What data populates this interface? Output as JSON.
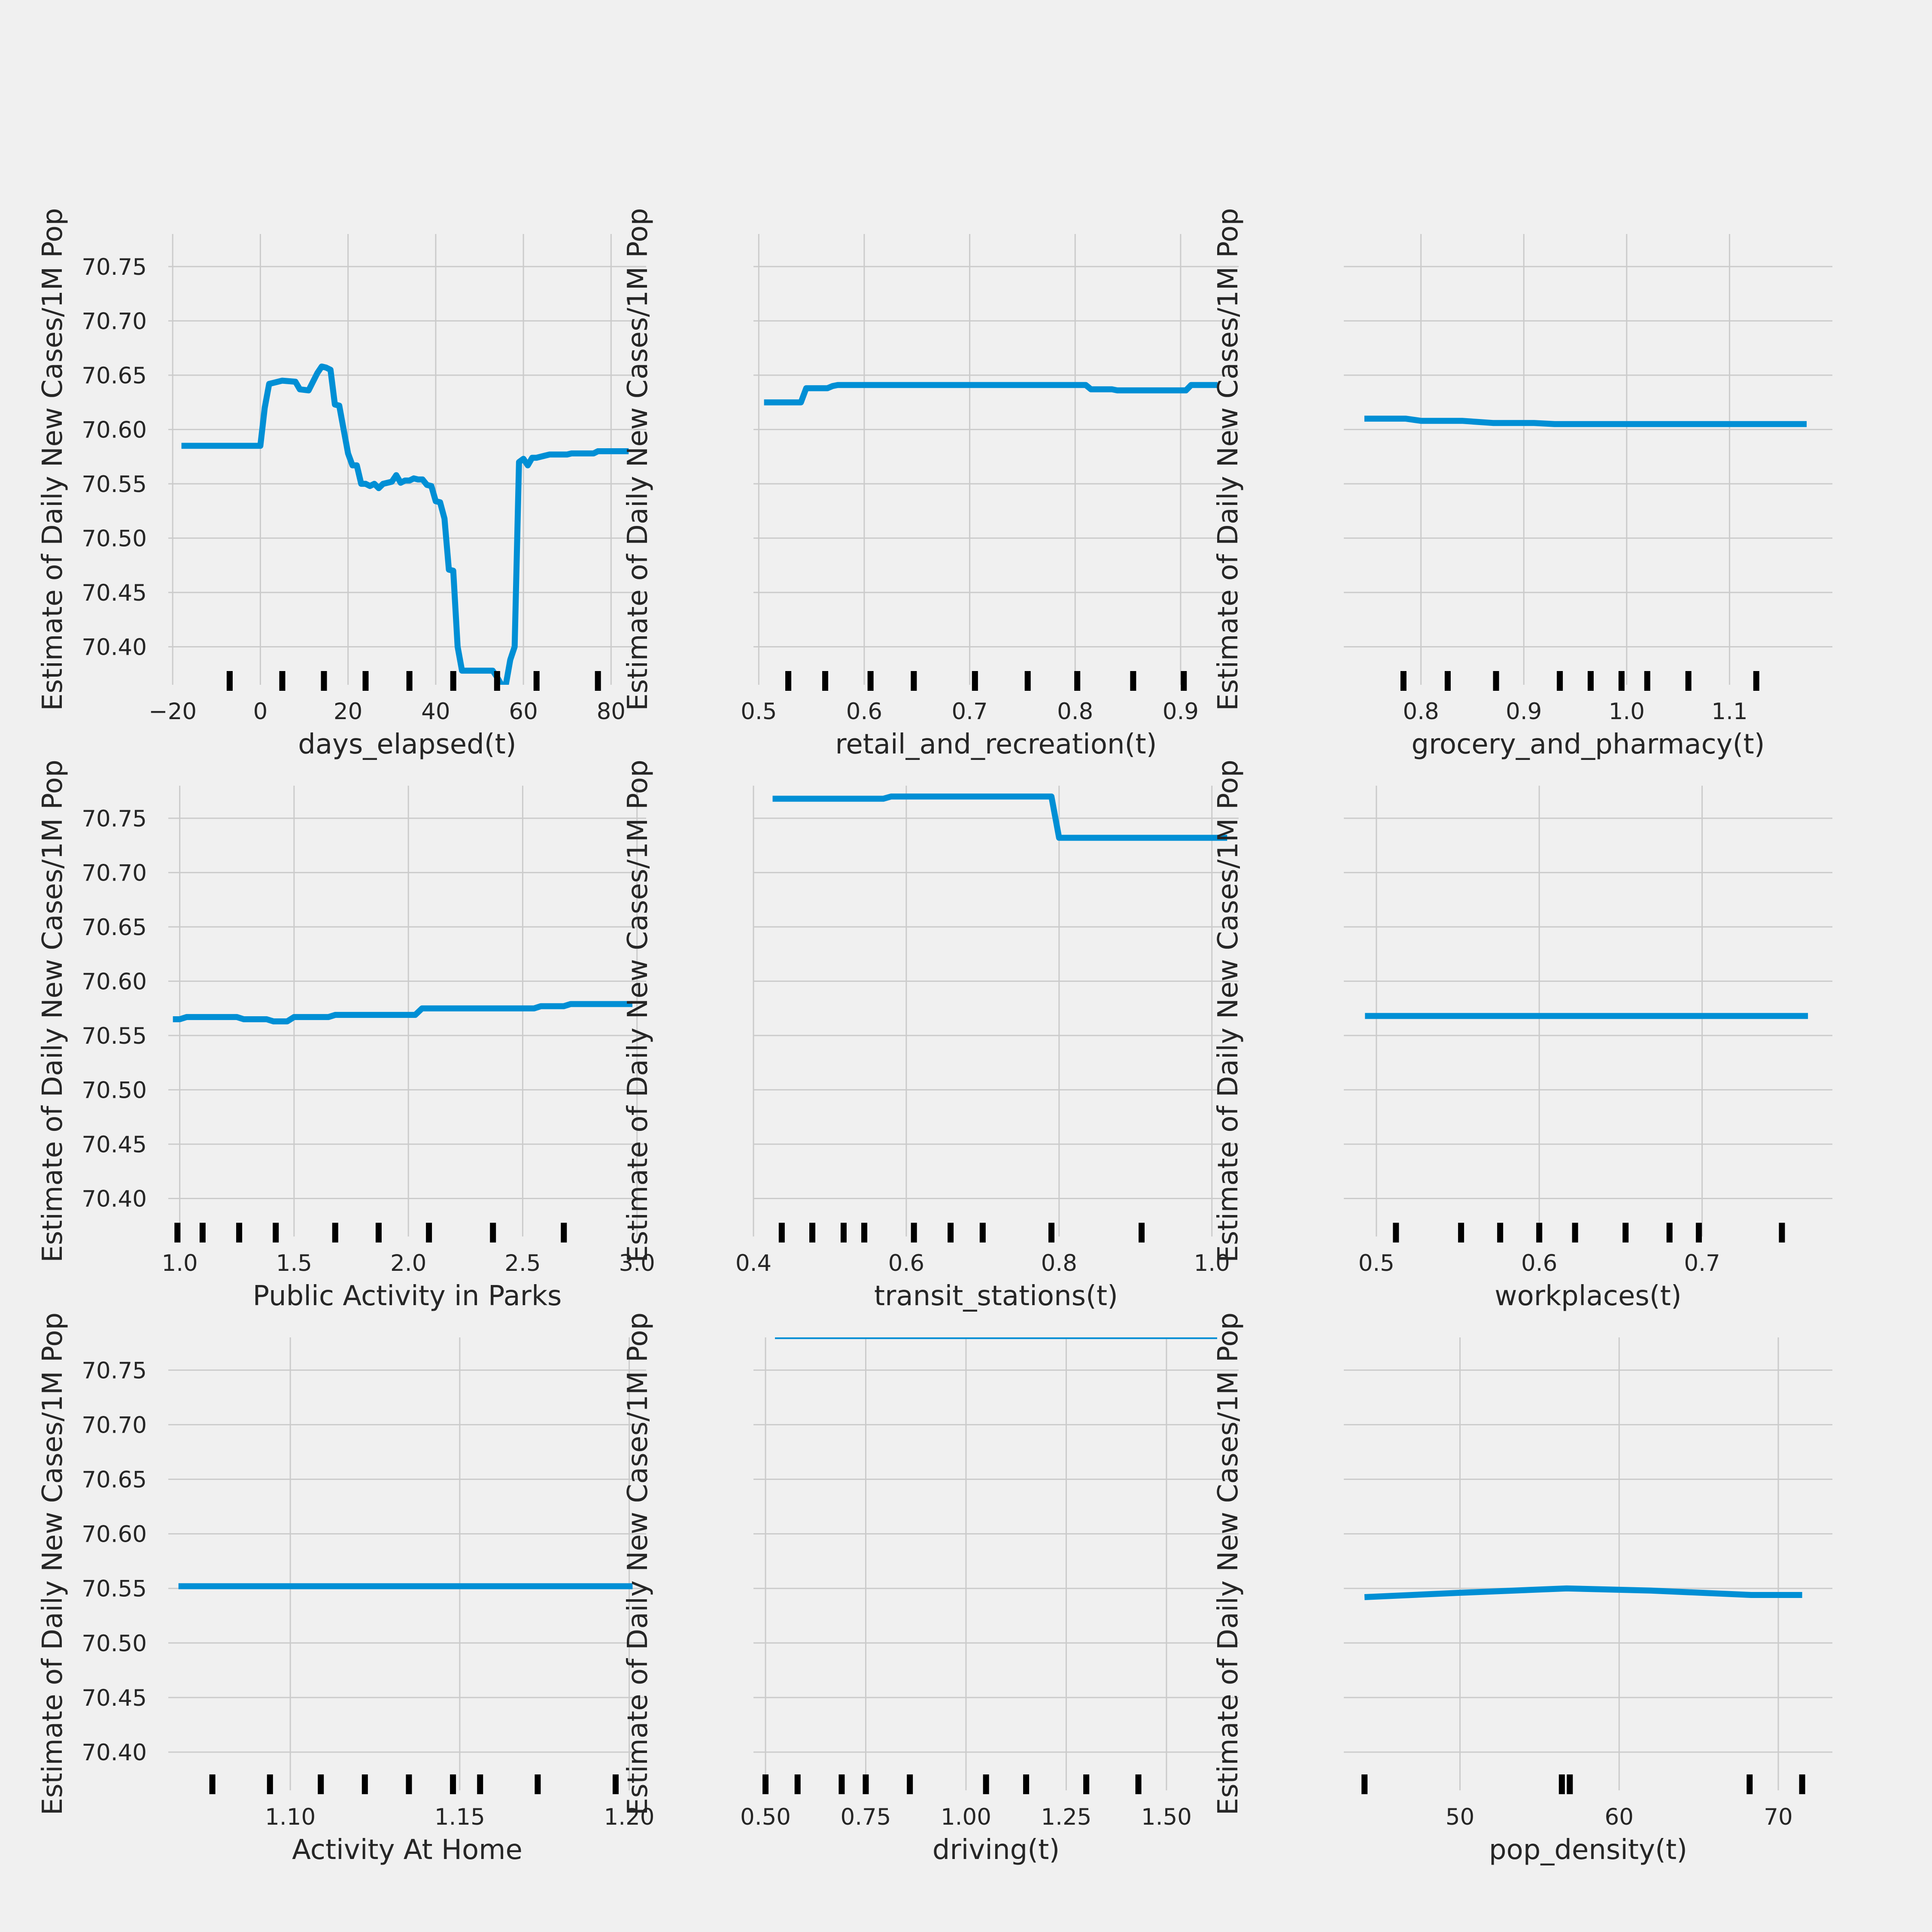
{
  "figure": {
    "background": "#f0f0f0",
    "line_color": "#008fd5",
    "grid_color": "#cbcbcb",
    "rug_color": "#000000",
    "shared_ylabel": "Estimate of Daily New Cases/1M Pop",
    "y_ticks": [
      70.4,
      70.45,
      70.5,
      70.55,
      70.6,
      70.65,
      70.7,
      70.75
    ],
    "y_tick_labels": [
      "70.40",
      "70.45",
      "70.50",
      "70.55",
      "70.60",
      "70.65",
      "70.70",
      "70.75"
    ],
    "ylim": [
      70.365,
      70.78
    ]
  },
  "chart_data": [
    {
      "type": "line",
      "xlabel": "days_elapsed(t)",
      "ylabel": "Estimate of Daily New Cases/1M Pop",
      "xlim": [
        -21,
        88
      ],
      "x_ticks": [
        -20,
        0,
        20,
        40,
        60,
        80
      ],
      "x_tick_labels": [
        "−20",
        "0",
        "20",
        "40",
        "60",
        "80"
      ],
      "show_y_tick_labels": true,
      "grid": true,
      "x": [
        -18,
        0,
        1,
        2,
        5,
        8,
        9,
        11,
        13,
        14,
        15,
        16,
        17,
        18,
        19,
        20,
        21,
        22,
        23,
        24,
        25,
        26,
        27,
        28,
        29,
        30,
        31,
        32,
        33,
        34,
        35,
        36,
        37,
        38,
        39,
        40,
        41,
        42,
        43,
        44,
        45,
        46,
        47,
        53,
        54,
        55,
        56,
        57,
        58,
        59,
        60,
        61,
        62,
        63,
        65,
        66,
        70,
        71,
        76,
        77,
        84
      ],
      "y": [
        70.585,
        70.585,
        70.62,
        70.642,
        70.645,
        70.644,
        70.637,
        70.636,
        70.652,
        70.658,
        70.657,
        70.655,
        70.623,
        70.622,
        70.6,
        70.578,
        70.567,
        70.567,
        70.55,
        70.55,
        70.548,
        70.55,
        70.546,
        70.55,
        70.551,
        70.552,
        70.558,
        70.551,
        70.553,
        70.553,
        70.555,
        70.554,
        70.554,
        70.549,
        70.548,
        70.534,
        70.533,
        70.518,
        70.471,
        70.47,
        70.4,
        70.378,
        70.378,
        70.378,
        70.372,
        70.365,
        70.365,
        70.388,
        70.4,
        70.57,
        70.573,
        70.567,
        70.574,
        70.574,
        70.576,
        70.577,
        70.577,
        70.578,
        70.578,
        70.58,
        70.58
      ],
      "rug": [
        -7,
        5,
        14.5,
        24,
        34,
        44,
        54,
        63,
        77
      ]
    },
    {
      "type": "line",
      "xlabel": "retail_and_recreation(t)",
      "ylabel": "Estimate of Daily New Cases/1M Pop",
      "xlim": [
        0.495,
        0.955
      ],
      "x_ticks": [
        0.5,
        0.6,
        0.7,
        0.8,
        0.9
      ],
      "x_tick_labels": [
        "0.5",
        "0.6",
        "0.7",
        "0.8",
        "0.9"
      ],
      "show_y_tick_labels": false,
      "grid": true,
      "x": [
        0.505,
        0.54,
        0.545,
        0.565,
        0.57,
        0.575,
        0.81,
        0.815,
        0.835,
        0.84,
        0.905,
        0.91,
        0.935
      ],
      "y": [
        70.625,
        70.625,
        70.638,
        70.638,
        70.64,
        70.641,
        70.641,
        70.637,
        70.637,
        70.636,
        70.636,
        70.641,
        70.641
      ],
      "rug": [
        0.528,
        0.563,
        0.606,
        0.647,
        0.705,
        0.755,
        0.802,
        0.855,
        0.903
      ]
    },
    {
      "type": "line",
      "xlabel": "grocery_and_pharmacy(t)",
      "ylabel": "Estimate of Daily New Cases/1M Pop",
      "xlim": [
        0.725,
        1.2
      ],
      "x_ticks": [
        0.8,
        0.9,
        1.0,
        1.1
      ],
      "x_tick_labels": [
        "0.8",
        "0.9",
        "1.0",
        "1.1"
      ],
      "show_y_tick_labels": false,
      "grid": true,
      "x": [
        0.745,
        0.785,
        0.8,
        0.84,
        0.87,
        0.91,
        0.93,
        1.175
      ],
      "y": [
        70.61,
        70.61,
        70.608,
        70.608,
        70.606,
        70.606,
        70.605,
        70.605
      ],
      "rug": [
        0.783,
        0.826,
        0.873,
        0.935,
        0.965,
        0.995,
        1.02,
        1.06,
        1.126
      ]
    },
    {
      "type": "line",
      "xlabel": "Public Activity in Parks",
      "ylabel": "Estimate of Daily New Cases/1M Pop",
      "xlim": [
        0.95,
        3.04
      ],
      "x_ticks": [
        1.0,
        1.5,
        2.0,
        2.5,
        3.0
      ],
      "x_tick_labels": [
        "1.0",
        "1.5",
        "2.0",
        "2.5",
        "3.0"
      ],
      "show_y_tick_labels": true,
      "grid": true,
      "x": [
        0.97,
        1.0,
        1.03,
        1.25,
        1.28,
        1.38,
        1.41,
        1.47,
        1.5,
        1.65,
        1.68,
        2.03,
        2.06,
        2.55,
        2.58,
        2.68,
        2.71,
        2.98
      ],
      "y": [
        70.565,
        70.565,
        70.567,
        70.567,
        70.565,
        70.565,
        70.563,
        70.563,
        70.567,
        70.567,
        70.569,
        70.569,
        70.575,
        70.575,
        70.577,
        70.577,
        70.579,
        70.579
      ],
      "rug": [
        0.99,
        1.1,
        1.26,
        1.42,
        1.68,
        1.87,
        2.09,
        2.37,
        2.68
      ]
    },
    {
      "type": "line",
      "xlabel": "transit_stations(t)",
      "ylabel": "Estimate of Daily New Cases/1M Pop",
      "xlim": [
        0.4,
        1.035
      ],
      "x_ticks": [
        0.4,
        0.6,
        0.8,
        1.0
      ],
      "x_tick_labels": [
        "0.4",
        "0.6",
        "0.8",
        "1.0"
      ],
      "show_y_tick_labels": false,
      "grid": true,
      "x": [
        0.425,
        0.57,
        0.58,
        0.79,
        0.8,
        1.02
      ],
      "y": [
        70.768,
        70.768,
        70.77,
        70.77,
        70.732,
        70.732
      ],
      "rug": [
        0.437,
        0.477,
        0.518,
        0.545,
        0.61,
        0.658,
        0.7,
        0.79,
        0.908
      ]
    },
    {
      "type": "line",
      "xlabel": "workplaces(t)",
      "ylabel": "Estimate of Daily New Cases/1M Pop",
      "xlim": [
        0.48,
        0.78
      ],
      "x_ticks": [
        0.5,
        0.6,
        0.7
      ],
      "x_tick_labels": [
        "0.5",
        "0.6",
        "0.7"
      ],
      "show_y_tick_labels": false,
      "grid": true,
      "x": [
        0.493,
        0.765
      ],
      "y": [
        70.568,
        70.568
      ],
      "rug": [
        0.512,
        0.552,
        0.576,
        0.6,
        0.622,
        0.653,
        0.68,
        0.698,
        0.749
      ]
    },
    {
      "type": "line",
      "xlabel": "Activity At Home",
      "ylabel": "Estimate of Daily New Cases/1M Pop",
      "xlim": [
        1.064,
        1.205
      ],
      "x_ticks": [
        1.1,
        1.15,
        1.2
      ],
      "x_tick_labels": [
        "1.10",
        "1.15",
        "1.20"
      ],
      "show_y_tick_labels": true,
      "grid": true,
      "x": [
        1.067,
        1.201
      ],
      "y": [
        70.552,
        70.552
      ],
      "rug": [
        1.077,
        1.094,
        1.109,
        1.122,
        1.135,
        1.148,
        1.156,
        1.173,
        1.196
      ]
    },
    {
      "type": "line",
      "xlabel": "driving(t)",
      "ylabel": "Estimate of Daily New Cases/1M Pop",
      "xlim": [
        0.47,
        1.68
      ],
      "x_ticks": [
        0.5,
        0.75,
        1.0,
        1.25,
        1.5
      ],
      "x_tick_labels": [
        "0.50",
        "0.75",
        "1.00",
        "1.25",
        "1.50"
      ],
      "show_y_tick_labels": false,
      "grid": true,
      "line_above_axes": true,
      "rug": [
        0.5,
        0.58,
        0.69,
        0.75,
        0.86,
        1.05,
        1.15,
        1.3,
        1.43
      ]
    },
    {
      "type": "line",
      "xlabel": "pop_density(t)",
      "ylabel": "Estimate of Daily New Cases/1M Pop",
      "xlim": [
        42.7,
        73.4
      ],
      "x_ticks": [
        50,
        60,
        70
      ],
      "x_tick_labels": [
        "50",
        "60",
        "70"
      ],
      "show_y_tick_labels": false,
      "grid": true,
      "x": [
        44.0,
        50.0,
        56.7,
        62.0,
        68.3,
        71.5
      ],
      "y": [
        70.542,
        70.546,
        70.55,
        70.548,
        70.544,
        70.544
      ],
      "rug": [
        44.0,
        56.4,
        56.9,
        68.2,
        71.5
      ]
    }
  ]
}
